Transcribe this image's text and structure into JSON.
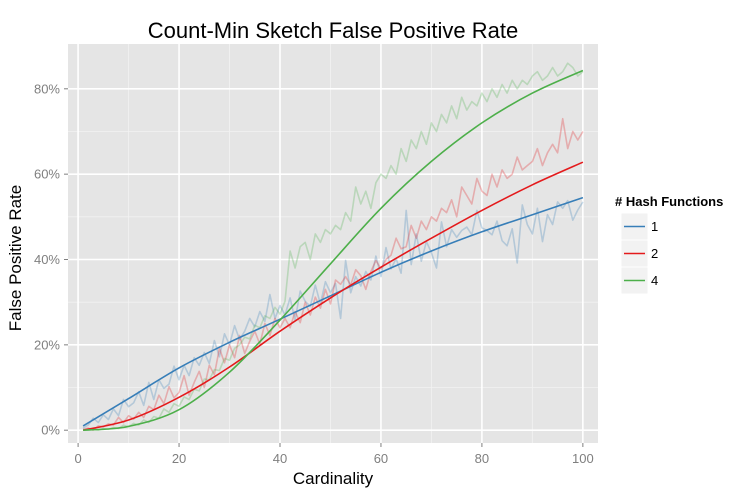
{
  "chart_data": {
    "type": "line",
    "title": "Count-Min Sketch False Positive Rate",
    "xlabel": "Cardinality",
    "ylabel": "False Positive Rate",
    "xlim": [
      -2,
      103
    ],
    "ylim": [
      -0.03,
      0.905
    ],
    "x_ticks": [
      0,
      20,
      40,
      60,
      80,
      100
    ],
    "x_tick_labels": [
      "0",
      "20",
      "40",
      "60",
      "80",
      "100"
    ],
    "y_ticks": [
      0,
      0.2,
      0.4,
      0.6,
      0.8
    ],
    "y_tick_labels": [
      "0%",
      "20%",
      "40%",
      "60%",
      "80%"
    ],
    "legend": {
      "title": "# Hash Functions",
      "position": "right"
    },
    "series": [
      {
        "name": "1",
        "color": "#377eb8",
        "smooth": {
          "x": [
            1,
            10,
            20,
            30,
            40,
            50,
            60,
            70,
            80,
            90,
            100
          ],
          "y": [
            0.01,
            0.074,
            0.146,
            0.206,
            0.26,
            0.315,
            0.37,
            0.42,
            0.465,
            0.505,
            0.545
          ]
        },
        "raw": {
          "x": [
            1,
            2,
            3,
            4,
            5,
            6,
            7,
            8,
            9,
            10,
            11,
            12,
            13,
            14,
            15,
            16,
            17,
            18,
            19,
            20,
            21,
            22,
            23,
            24,
            25,
            26,
            27,
            28,
            29,
            30,
            31,
            32,
            33,
            34,
            35,
            36,
            37,
            38,
            39,
            40,
            41,
            42,
            43,
            44,
            45,
            46,
            47,
            48,
            49,
            50,
            51,
            52,
            53,
            54,
            55,
            56,
            57,
            58,
            59,
            60,
            61,
            62,
            63,
            64,
            65,
            66,
            67,
            68,
            69,
            70,
            71,
            72,
            73,
            74,
            75,
            76,
            77,
            78,
            79,
            80,
            81,
            82,
            83,
            84,
            85,
            86,
            87,
            88,
            89,
            90,
            91,
            92,
            93,
            94,
            95,
            96,
            97,
            98,
            99,
            100
          ],
          "y": [
            0.005,
            0.012,
            0.028,
            0.018,
            0.036,
            0.025,
            0.05,
            0.034,
            0.072,
            0.055,
            0.064,
            0.09,
            0.058,
            0.112,
            0.072,
            0.118,
            0.098,
            0.108,
            0.15,
            0.118,
            0.152,
            0.128,
            0.17,
            0.152,
            0.182,
            0.156,
            0.21,
            0.172,
            0.226,
            0.2,
            0.245,
            0.212,
            0.232,
            0.262,
            0.242,
            0.278,
            0.255,
            0.318,
            0.262,
            0.292,
            0.27,
            0.31,
            0.258,
            0.326,
            0.302,
            0.29,
            0.34,
            0.296,
            0.348,
            0.322,
            0.344,
            0.262,
            0.398,
            0.322,
            0.36,
            0.338,
            0.372,
            0.352,
            0.408,
            0.36,
            0.428,
            0.378,
            0.402,
            0.368,
            0.515,
            0.388,
            0.46,
            0.396,
            0.442,
            0.416,
            0.38,
            0.488,
            0.43,
            0.47,
            0.452,
            0.468,
            0.476,
            0.458,
            0.515,
            0.474,
            0.468,
            0.458,
            0.49,
            0.444,
            0.432,
            0.472,
            0.392,
            0.528,
            0.482,
            0.46,
            0.52,
            0.442,
            0.505,
            0.482,
            0.535,
            0.52,
            0.538,
            0.492,
            0.516,
            0.535
          ]
        }
      },
      {
        "name": "2",
        "color": "#e41a1c",
        "smooth": {
          "x": [
            1,
            10,
            20,
            30,
            40,
            50,
            60,
            70,
            80,
            90,
            100
          ],
          "y": [
            0.0,
            0.024,
            0.077,
            0.148,
            0.232,
            0.31,
            0.382,
            0.45,
            0.515,
            0.575,
            0.628
          ]
        },
        "raw": {
          "x": [
            1,
            2,
            3,
            4,
            5,
            6,
            7,
            8,
            9,
            10,
            11,
            12,
            13,
            14,
            15,
            16,
            17,
            18,
            19,
            20,
            21,
            22,
            23,
            24,
            25,
            26,
            27,
            28,
            29,
            30,
            31,
            32,
            33,
            34,
            35,
            36,
            37,
            38,
            39,
            40,
            41,
            42,
            43,
            44,
            45,
            46,
            47,
            48,
            49,
            50,
            51,
            52,
            53,
            54,
            55,
            56,
            57,
            58,
            59,
            60,
            61,
            62,
            63,
            64,
            65,
            66,
            67,
            68,
            69,
            70,
            71,
            72,
            73,
            74,
            75,
            76,
            77,
            78,
            79,
            80,
            81,
            82,
            83,
            84,
            85,
            86,
            87,
            88,
            89,
            90,
            91,
            92,
            93,
            94,
            95,
            96,
            97,
            98,
            99,
            100
          ],
          "y": [
            0.002,
            0.005,
            0.0,
            0.01,
            0.008,
            0.015,
            0.012,
            0.03,
            0.018,
            0.034,
            0.026,
            0.042,
            0.03,
            0.056,
            0.048,
            0.082,
            0.062,
            0.102,
            0.076,
            0.088,
            0.128,
            0.082,
            0.112,
            0.138,
            0.1,
            0.152,
            0.13,
            0.192,
            0.158,
            0.2,
            0.17,
            0.222,
            0.18,
            0.208,
            0.232,
            0.202,
            0.25,
            0.222,
            0.262,
            0.24,
            0.262,
            0.24,
            0.278,
            0.252,
            0.3,
            0.27,
            0.312,
            0.286,
            0.33,
            0.296,
            0.352,
            0.342,
            0.36,
            0.34,
            0.376,
            0.362,
            0.33,
            0.372,
            0.398,
            0.378,
            0.4,
            0.41,
            0.45,
            0.425,
            0.43,
            0.48,
            0.45,
            0.49,
            0.47,
            0.5,
            0.49,
            0.52,
            0.51,
            0.54,
            0.5,
            0.57,
            0.55,
            0.53,
            0.59,
            0.56,
            0.55,
            0.6,
            0.57,
            0.61,
            0.59,
            0.6,
            0.64,
            0.61,
            0.62,
            0.63,
            0.66,
            0.62,
            0.65,
            0.67,
            0.65,
            0.73,
            0.66,
            0.7,
            0.68,
            0.7
          ]
        }
      },
      {
        "name": "4",
        "color": "#4daf4a",
        "smooth": {
          "x": [
            1,
            10,
            20,
            30,
            40,
            50,
            60,
            70,
            80,
            90,
            100
          ],
          "y": [
            0.0,
            0.009,
            0.048,
            0.136,
            0.258,
            0.39,
            0.52,
            0.63,
            0.72,
            0.79,
            0.843
          ]
        },
        "raw": {
          "x": [
            1,
            2,
            3,
            4,
            5,
            6,
            7,
            8,
            9,
            10,
            11,
            12,
            13,
            14,
            15,
            16,
            17,
            18,
            19,
            20,
            21,
            22,
            23,
            24,
            25,
            26,
            27,
            28,
            29,
            30,
            31,
            32,
            33,
            34,
            35,
            36,
            37,
            38,
            39,
            40,
            41,
            42,
            43,
            44,
            45,
            46,
            47,
            48,
            49,
            50,
            51,
            52,
            53,
            54,
            55,
            56,
            57,
            58,
            59,
            60,
            61,
            62,
            63,
            64,
            65,
            66,
            67,
            68,
            69,
            70,
            71,
            72,
            73,
            74,
            75,
            76,
            77,
            78,
            79,
            80,
            81,
            82,
            83,
            84,
            85,
            86,
            87,
            88,
            89,
            90,
            91,
            92,
            93,
            94,
            95,
            96,
            97,
            98,
            99,
            100
          ],
          "y": [
            0.0,
            0.0,
            0.002,
            0.0,
            0.004,
            0.002,
            0.006,
            0.004,
            0.012,
            0.008,
            0.016,
            0.012,
            0.024,
            0.018,
            0.032,
            0.028,
            0.05,
            0.042,
            0.062,
            0.056,
            0.078,
            0.072,
            0.096,
            0.092,
            0.12,
            0.118,
            0.142,
            0.14,
            0.168,
            0.164,
            0.192,
            0.2,
            0.218,
            0.214,
            0.246,
            0.24,
            0.268,
            0.262,
            0.288,
            0.272,
            0.302,
            0.42,
            0.38,
            0.43,
            0.44,
            0.4,
            0.46,
            0.44,
            0.47,
            0.46,
            0.48,
            0.47,
            0.51,
            0.49,
            0.57,
            0.53,
            0.56,
            0.52,
            0.58,
            0.6,
            0.59,
            0.62,
            0.6,
            0.66,
            0.63,
            0.68,
            0.66,
            0.7,
            0.67,
            0.72,
            0.7,
            0.74,
            0.72,
            0.76,
            0.73,
            0.78,
            0.75,
            0.77,
            0.76,
            0.79,
            0.77,
            0.8,
            0.78,
            0.81,
            0.79,
            0.82,
            0.8,
            0.82,
            0.81,
            0.83,
            0.84,
            0.82,
            0.83,
            0.85,
            0.83,
            0.84,
            0.86,
            0.85,
            0.83,
            0.84
          ]
        }
      }
    ]
  }
}
